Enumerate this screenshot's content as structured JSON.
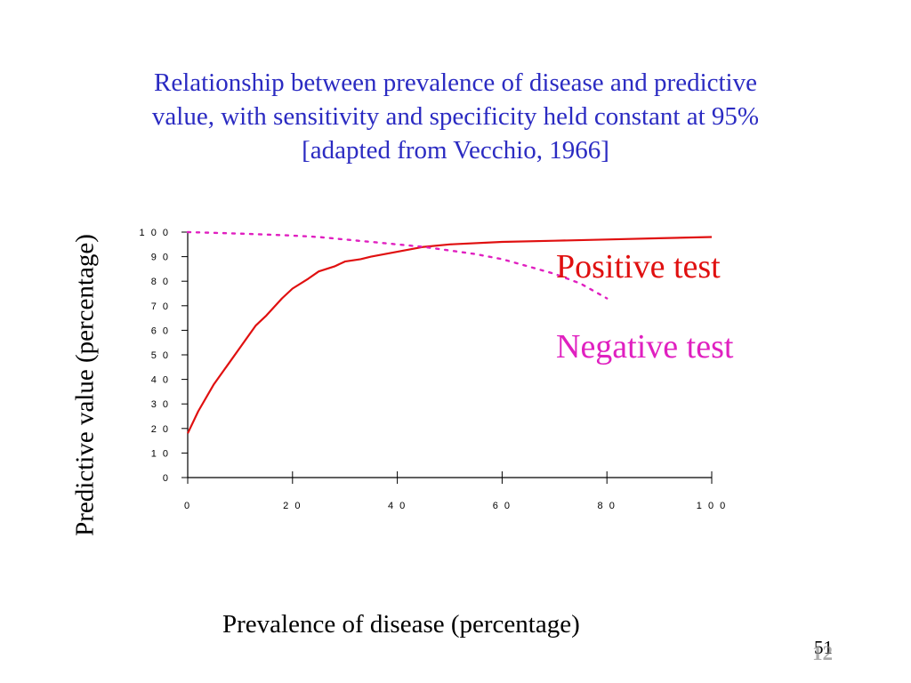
{
  "slide": {
    "number": "51",
    "number_overlay": "12"
  },
  "chart_data": {
    "type": "line",
    "title_lines": [
      "Relationship between prevalence of disease and predictive",
      "value, with sensitivity and specificity held constant at 95%",
      "[adapted from Vecchio, 1966]"
    ],
    "xlabel": "Prevalence of disease (percentage)",
    "ylabel": "Predictive value (percentage)",
    "xlim": [
      0,
      100
    ],
    "ylim": [
      0,
      100
    ],
    "x_ticks": [
      "0",
      "2 0",
      "4 0",
      "6 0",
      "8 0",
      "1 0 0"
    ],
    "y_ticks": [
      "0",
      "1 0",
      "2 0",
      "3 0",
      "4 0",
      "5 0",
      "6 0",
      "7 0",
      "8 0",
      "9 0",
      "1 0 0"
    ],
    "series": [
      {
        "name": "Positive test",
        "color": "#e01010",
        "style": "solid",
        "x": [
          0,
          2,
          5,
          8,
          10,
          13,
          15,
          18,
          20,
          23,
          25,
          28,
          30,
          33,
          35,
          40,
          45,
          50,
          60,
          70,
          80,
          90,
          100
        ],
        "y": [
          18,
          27,
          38,
          47,
          53,
          62,
          66,
          73,
          77,
          81,
          84,
          86,
          88,
          89,
          90,
          92,
          94,
          95,
          96,
          96.5,
          97,
          97.5,
          98
        ]
      },
      {
        "name": "Negative test",
        "color": "#e020c0",
        "style": "dotted",
        "x": [
          0,
          5,
          10,
          15,
          20,
          25,
          30,
          35,
          40,
          45,
          50,
          55,
          60,
          65,
          70,
          75,
          80
        ],
        "y": [
          100,
          99.7,
          99.4,
          99,
          98.6,
          98,
          97,
          96,
          95,
          94,
          92.5,
          91,
          89,
          86,
          83,
          79,
          73
        ]
      }
    ]
  }
}
